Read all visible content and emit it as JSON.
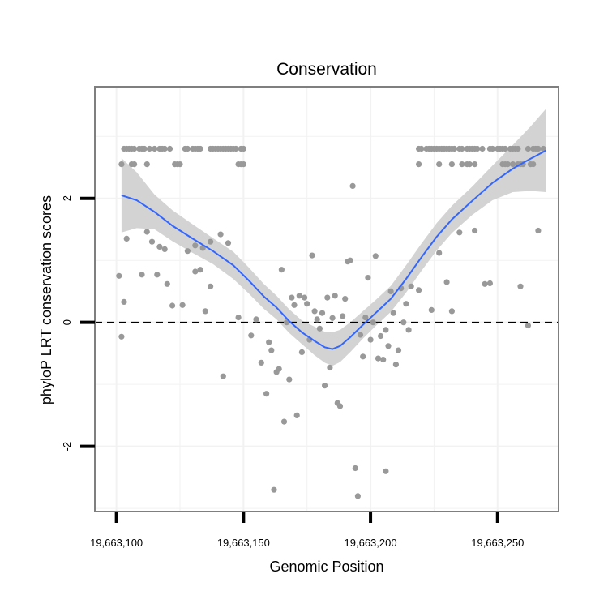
{
  "chart_data": {
    "type": "scatter",
    "title": "Conservation",
    "xlabel": "Genomic Position",
    "ylabel": "phyloP LRT conservation scores",
    "xlim": [
      19663091.5,
      19663274
    ],
    "ylim": [
      -3.05,
      3.8
    ],
    "x_ticks": [
      19663100,
      19663150,
      19663200,
      19663250
    ],
    "x_tick_labels": [
      "19,663,100",
      "19,663,150",
      "19,663,200",
      "19,663,250"
    ],
    "y_ticks": [
      -2,
      0,
      2
    ],
    "y_tick_labels": [
      "-2",
      "0",
      "2"
    ],
    "reference_line_y": 0,
    "grid": true,
    "colors": {
      "points": "#999999",
      "smooth_line": "#3366ff",
      "confidence_band": "#d3d3d3",
      "panel_border": "#7f7f7f",
      "grid": "#f2f2f2"
    },
    "points": [
      [
        19663103,
        2.8
      ],
      [
        19663104,
        2.8
      ],
      [
        19663105,
        2.8
      ],
      [
        19663106,
        2.8
      ],
      [
        19663107,
        2.8
      ],
      [
        19663109,
        2.8
      ],
      [
        19663110,
        2.8
      ],
      [
        19663111,
        2.8
      ],
      [
        19663113,
        2.8
      ],
      [
        19663115,
        2.8
      ],
      [
        19663117,
        2.8
      ],
      [
        19663118,
        2.8
      ],
      [
        19663119,
        2.8
      ],
      [
        19663121,
        2.8
      ],
      [
        19663127,
        2.8
      ],
      [
        19663128,
        2.8
      ],
      [
        19663130,
        2.8
      ],
      [
        19663131,
        2.8
      ],
      [
        19663132,
        2.8
      ],
      [
        19663133,
        2.8
      ],
      [
        19663137,
        2.8
      ],
      [
        19663138,
        2.8
      ],
      [
        19663139,
        2.8
      ],
      [
        19663140,
        2.8
      ],
      [
        19663141,
        2.8
      ],
      [
        19663142,
        2.8
      ],
      [
        19663143,
        2.8
      ],
      [
        19663144,
        2.8
      ],
      [
        19663145,
        2.8
      ],
      [
        19663146,
        2.8
      ],
      [
        19663147,
        2.8
      ],
      [
        19663149,
        2.8
      ],
      [
        19663150,
        2.8
      ],
      [
        19663102,
        2.55
      ],
      [
        19663106,
        2.55
      ],
      [
        19663107,
        2.55
      ],
      [
        19663112,
        2.55
      ],
      [
        19663123,
        2.55
      ],
      [
        19663124,
        2.55
      ],
      [
        19663125,
        2.55
      ],
      [
        19663148,
        2.55
      ],
      [
        19663149,
        2.55
      ],
      [
        19663150,
        2.55
      ],
      [
        19663219,
        2.8
      ],
      [
        19663220,
        2.8
      ],
      [
        19663222,
        2.8
      ],
      [
        19663223,
        2.8
      ],
      [
        19663224,
        2.8
      ],
      [
        19663225,
        2.8
      ],
      [
        19663226,
        2.8
      ],
      [
        19663227,
        2.8
      ],
      [
        19663228,
        2.8
      ],
      [
        19663229,
        2.8
      ],
      [
        19663230,
        2.8
      ],
      [
        19663231,
        2.8
      ],
      [
        19663232,
        2.8
      ],
      [
        19663233,
        2.8
      ],
      [
        19663235,
        2.8
      ],
      [
        19663236,
        2.8
      ],
      [
        19663238,
        2.8
      ],
      [
        19663239,
        2.8
      ],
      [
        19663240,
        2.8
      ],
      [
        19663241,
        2.8
      ],
      [
        19663242,
        2.8
      ],
      [
        19663244,
        2.8
      ],
      [
        19663247,
        2.8
      ],
      [
        19663248,
        2.8
      ],
      [
        19663250,
        2.8
      ],
      [
        19663251,
        2.8
      ],
      [
        19663252,
        2.8
      ],
      [
        19663253,
        2.8
      ],
      [
        19663255,
        2.8
      ],
      [
        19663256,
        2.8
      ],
      [
        19663257,
        2.8
      ],
      [
        19663258,
        2.8
      ],
      [
        19663262,
        2.8
      ],
      [
        19663264,
        2.8
      ],
      [
        19663265,
        2.8
      ],
      [
        19663266,
        2.8
      ],
      [
        19663268,
        2.8
      ],
      [
        19663219,
        2.55
      ],
      [
        19663227,
        2.55
      ],
      [
        19663232,
        2.55
      ],
      [
        19663236,
        2.55
      ],
      [
        19663238,
        2.55
      ],
      [
        19663239,
        2.55
      ],
      [
        19663241,
        2.55
      ],
      [
        19663252,
        2.55
      ],
      [
        19663253,
        2.55
      ],
      [
        19663254,
        2.55
      ],
      [
        19663256,
        2.55
      ],
      [
        19663258,
        2.55
      ],
      [
        19663259,
        2.55
      ],
      [
        19663260,
        2.55
      ],
      [
        19663263,
        2.55
      ],
      [
        19663264,
        2.55
      ],
      [
        19663193,
        2.2
      ],
      [
        19663141,
        1.42
      ],
      [
        19663112,
        1.46
      ],
      [
        19663117,
        1.22
      ],
      [
        19663114,
        1.3
      ],
      [
        19663119,
        1.18
      ],
      [
        19663131,
        1.24
      ],
      [
        19663137,
        1.3
      ],
      [
        19663104,
        1.35
      ],
      [
        19663128,
        1.15
      ],
      [
        19663134,
        1.2
      ],
      [
        19663144,
        1.28
      ],
      [
        19663110,
        0.77
      ],
      [
        19663116,
        0.77
      ],
      [
        19663101,
        0.75
      ],
      [
        19663120,
        0.62
      ],
      [
        19663131,
        0.82
      ],
      [
        19663133,
        0.85
      ],
      [
        19663137,
        0.58
      ],
      [
        19663103,
        0.33
      ],
      [
        19663122,
        0.27
      ],
      [
        19663126,
        0.28
      ],
      [
        19663135,
        0.18
      ],
      [
        19663102,
        -0.23
      ],
      [
        19663142,
        -0.87
      ],
      [
        19663148,
        0.08
      ],
      [
        19663155,
        0.05
      ],
      [
        19663153,
        -0.21
      ],
      [
        19663157,
        -0.65
      ],
      [
        19663159,
        -1.15
      ],
      [
        19663160,
        -0.32
      ],
      [
        19663161,
        -0.45
      ],
      [
        19663163,
        -0.8
      ],
      [
        19663164,
        -0.75
      ],
      [
        19663165,
        0.85
      ],
      [
        19663166,
        -1.6
      ],
      [
        19663167,
        0.0
      ],
      [
        19663168,
        -0.92
      ],
      [
        19663169,
        0.4
      ],
      [
        19663170,
        0.28
      ],
      [
        19663171,
        -1.5
      ],
      [
        19663172,
        0.43
      ],
      [
        19663173,
        -0.48
      ],
      [
        19663174,
        0.4
      ],
      [
        19663175,
        0.3
      ],
      [
        19663176,
        -0.28
      ],
      [
        19663177,
        1.08
      ],
      [
        19663178,
        0.18
      ],
      [
        19663179,
        0.05
      ],
      [
        19663180,
        -0.1
      ],
      [
        19663181,
        0.15
      ],
      [
        19663182,
        -1.02
      ],
      [
        19663183,
        0.4
      ],
      [
        19663184,
        -0.73
      ],
      [
        19663185,
        0.07
      ],
      [
        19663186,
        0.43
      ],
      [
        19663187,
        -1.3
      ],
      [
        19663188,
        -1.35
      ],
      [
        19663189,
        0.1
      ],
      [
        19663190,
        0.38
      ],
      [
        19663191,
        0.98
      ],
      [
        19663192,
        1.0
      ],
      [
        19663194,
        -2.35
      ],
      [
        19663195,
        -2.8
      ],
      [
        19663196,
        -0.2
      ],
      [
        19663197,
        -0.55
      ],
      [
        19663198,
        0.08
      ],
      [
        19663199,
        0.72
      ],
      [
        19663200,
        -0.28
      ],
      [
        19663201,
        0.0
      ],
      [
        19663202,
        1.07
      ],
      [
        19663203,
        -0.58
      ],
      [
        19663204,
        -0.22
      ],
      [
        19663205,
        -0.6
      ],
      [
        19663206,
        -0.12
      ],
      [
        19663207,
        -0.38
      ],
      [
        19663208,
        0.5
      ],
      [
        19663209,
        0.15
      ],
      [
        19663210,
        -0.68
      ],
      [
        19663211,
        -0.45
      ],
      [
        19663212,
        0.55
      ],
      [
        19663213,
        0.0
      ],
      [
        19663214,
        0.3
      ],
      [
        19663215,
        -0.12
      ],
      [
        19663216,
        0.58
      ],
      [
        19663162,
        -2.7
      ],
      [
        19663206,
        -2.4
      ],
      [
        19663219,
        0.52
      ],
      [
        19663224,
        0.2
      ],
      [
        19663227,
        1.12
      ],
      [
        19663230,
        0.65
      ],
      [
        19663232,
        0.18
      ],
      [
        19663235,
        1.45
      ],
      [
        19663241,
        1.48
      ],
      [
        19663245,
        0.62
      ],
      [
        19663247,
        0.63
      ],
      [
        19663259,
        0.58
      ],
      [
        19663262,
        -0.05
      ],
      [
        19663266,
        1.48
      ]
    ],
    "smooth_line": [
      [
        19663102,
        2.05
      ],
      [
        19663108,
        1.97
      ],
      [
        19663115,
        1.78
      ],
      [
        19663122,
        1.56
      ],
      [
        19663130,
        1.35
      ],
      [
        19663138,
        1.15
      ],
      [
        19663146,
        0.92
      ],
      [
        19663152,
        0.68
      ],
      [
        19663158,
        0.42
      ],
      [
        19663163,
        0.24
      ],
      [
        19663168,
        0.02
      ],
      [
        19663173,
        -0.16
      ],
      [
        19663178,
        -0.3
      ],
      [
        19663182,
        -0.4
      ],
      [
        19663185,
        -0.43
      ],
      [
        19663188,
        -0.38
      ],
      [
        19663192,
        -0.24
      ],
      [
        19663197,
        -0.04
      ],
      [
        19663202,
        0.15
      ],
      [
        19663208,
        0.38
      ],
      [
        19663214,
        0.7
      ],
      [
        19663220,
        1.05
      ],
      [
        19663226,
        1.38
      ],
      [
        19663232,
        1.66
      ],
      [
        19663240,
        1.96
      ],
      [
        19663248,
        2.25
      ],
      [
        19663256,
        2.48
      ],
      [
        19663263,
        2.64
      ],
      [
        19663269,
        2.77
      ]
    ],
    "confidence_band": [
      [
        19663102,
        1.45,
        2.65
      ],
      [
        19663108,
        1.52,
        2.42
      ],
      [
        19663115,
        1.5,
        2.06
      ],
      [
        19663122,
        1.31,
        1.81
      ],
      [
        19663130,
        1.12,
        1.58
      ],
      [
        19663138,
        0.94,
        1.36
      ],
      [
        19663146,
        0.7,
        1.14
      ],
      [
        19663152,
        0.47,
        0.89
      ],
      [
        19663158,
        0.22,
        0.62
      ],
      [
        19663163,
        0.05,
        0.43
      ],
      [
        19663168,
        -0.17,
        0.21
      ],
      [
        19663173,
        -0.35,
        0.03
      ],
      [
        19663178,
        -0.53,
        -0.07
      ],
      [
        19663182,
        -0.65,
        -0.15
      ],
      [
        19663185,
        -0.7,
        -0.16
      ],
      [
        19663188,
        -0.64,
        -0.12
      ],
      [
        19663192,
        -0.48,
        0.0
      ],
      [
        19663197,
        -0.26,
        0.18
      ],
      [
        19663202,
        -0.06,
        0.36
      ],
      [
        19663208,
        0.17,
        0.59
      ],
      [
        19663214,
        0.48,
        0.92
      ],
      [
        19663220,
        0.83,
        1.27
      ],
      [
        19663226,
        1.16,
        1.6
      ],
      [
        19663232,
        1.44,
        1.88
      ],
      [
        19663240,
        1.73,
        2.19
      ],
      [
        19663248,
        1.97,
        2.53
      ],
      [
        19663256,
        2.1,
        2.86
      ],
      [
        19663263,
        2.12,
        3.16
      ],
      [
        19663269,
        2.1,
        3.44
      ]
    ]
  }
}
